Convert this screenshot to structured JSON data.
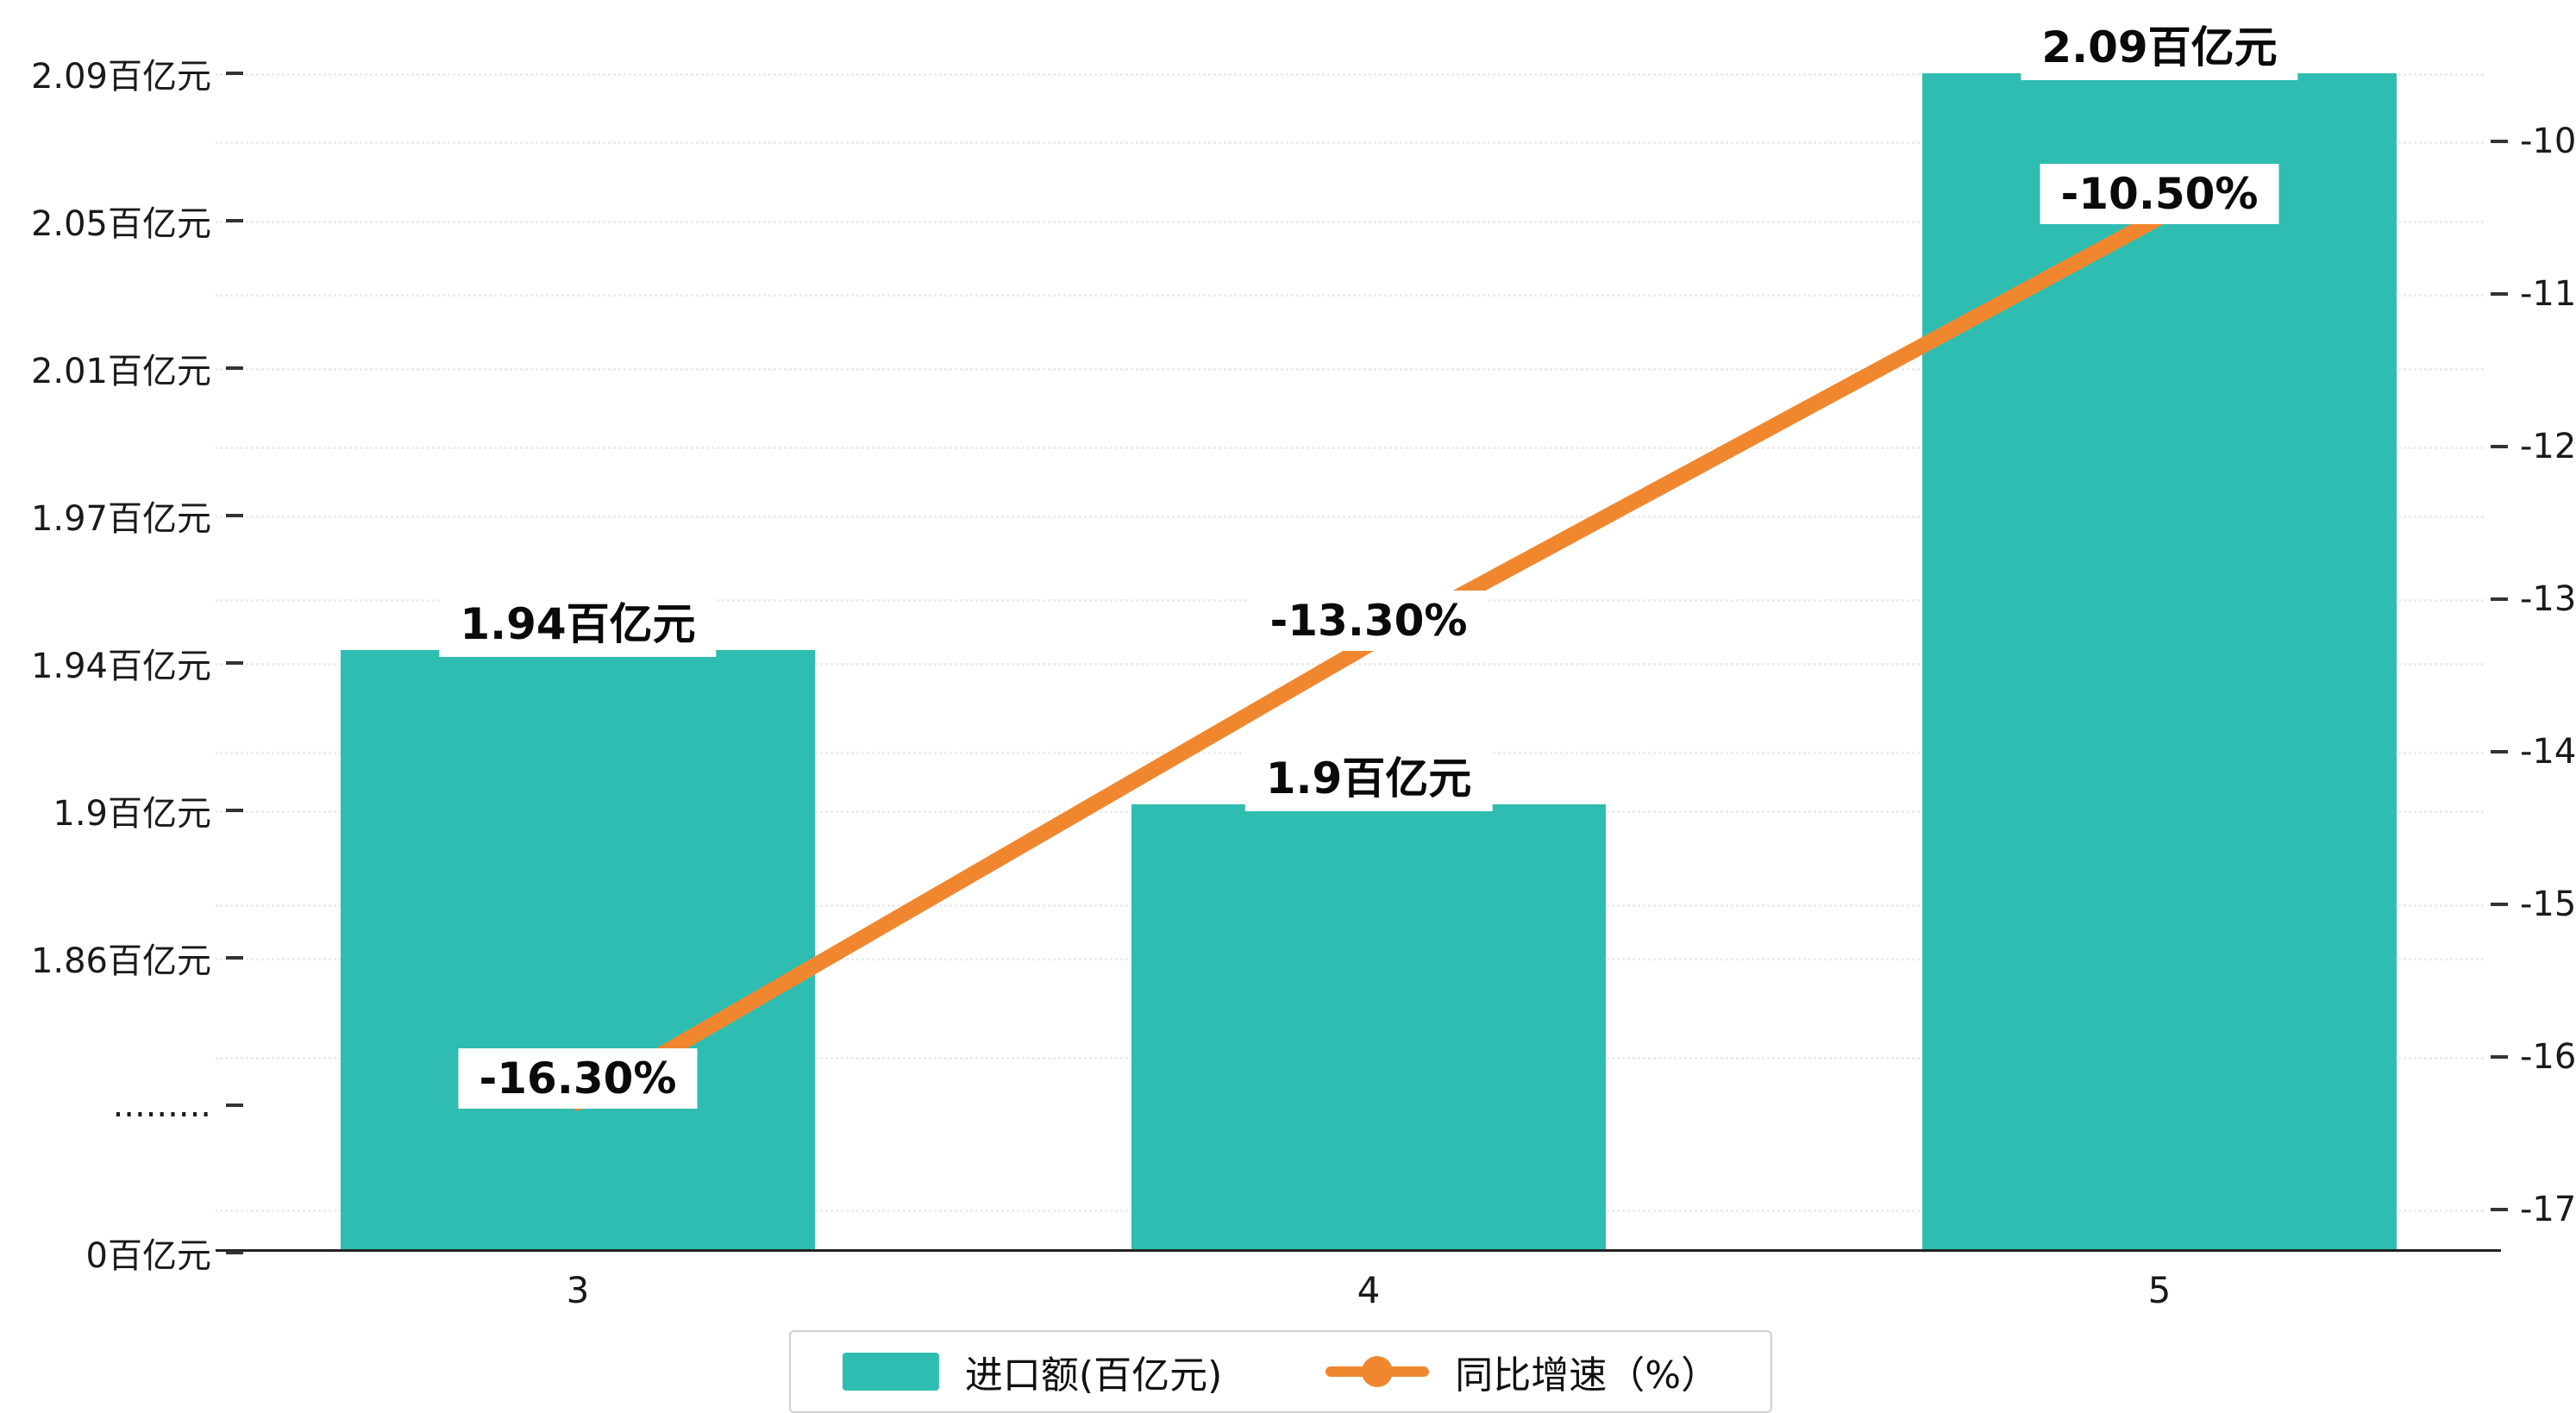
{
  "chart_data": {
    "type": "bar+line",
    "categories": [
      "3",
      "4",
      "5"
    ],
    "series": [
      {
        "name": "进口额(百亿元)",
        "type": "bar",
        "axis": "left",
        "values": [
          1.94,
          1.9,
          2.09
        ],
        "labels": [
          "1.94百亿元",
          "1.9百亿元",
          "2.09百亿元"
        ],
        "color": "#2fbdb2"
      },
      {
        "name": "同比增速（%）",
        "type": "line",
        "axis": "right",
        "values": [
          -16.3,
          -13.3,
          -10.5
        ],
        "labels": [
          "-16.30%",
          "-13.30%",
          "-10.50%"
        ],
        "color": "#f0872f"
      }
    ],
    "left_axis": {
      "tick_labels": [
        "2.09百亿元",
        "2.05百亿元",
        "2.01百亿元",
        "1.97百亿元",
        "1.94百亿元",
        "1.9百亿元",
        "1.86百亿元",
        ".........",
        "0百亿元"
      ],
      "axis_break": true,
      "visible_value_range": [
        1.86,
        2.09
      ]
    },
    "right_axis": {
      "tick_labels": [
        "-10",
        "-11",
        "-12",
        "-13",
        "-14",
        "-15",
        "-16",
        "-17"
      ],
      "range": [
        -17,
        -10
      ],
      "unit": "%"
    },
    "legend": [
      {
        "label": "进口额(百亿元)",
        "type": "bar"
      },
      {
        "label": "同比增速（%）",
        "type": "line"
      }
    ],
    "grid": true,
    "legend_position": "bottom",
    "title": ""
  }
}
